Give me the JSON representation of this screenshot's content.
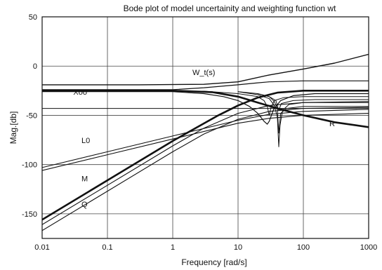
{
  "chart_data": {
    "type": "line",
    "title": "Bode  plot of model uncertainity and weighting function wt",
    "xlabel": "Frequency [rad/s]",
    "ylabel": "Mag.[db]",
    "xscale": "log",
    "xlim": [
      0.01,
      1000
    ],
    "ylim": [
      -175,
      50
    ],
    "grid": true,
    "x_ticks": [
      0.01,
      0.1,
      1,
      10,
      100,
      1000
    ],
    "x_tick_labels": [
      "0.01",
      "0.1",
      "1",
      "10",
      "100",
      "1000"
    ],
    "y_ticks": [
      50,
      0,
      -50,
      -100,
      -150
    ],
    "y_tick_labels": [
      "50",
      "0",
      "-50",
      "-100",
      "-150"
    ],
    "annotations": [
      {
        "text": "W_t(s)",
        "x": 2.0,
        "y": -9
      },
      {
        "text": "Xoo",
        "x": 0.03,
        "y": -29
      },
      {
        "text": "L0",
        "x": 0.04,
        "y": -78
      },
      {
        "text": "M",
        "x": 0.04,
        "y": -117
      },
      {
        "text": "Q",
        "x": 0.04,
        "y": -143
      },
      {
        "text": "R",
        "x": 250,
        "y": -61
      }
    ],
    "series": [
      {
        "role": "W_t",
        "stroke": 1.4,
        "points": [
          [
            0.01,
            -19
          ],
          [
            0.3,
            -19
          ],
          [
            3,
            -18.5
          ],
          [
            10,
            -16
          ],
          [
            30,
            -9
          ],
          [
            100,
            -3
          ],
          [
            300,
            3
          ],
          [
            1000,
            12
          ]
        ]
      },
      {
        "role": "Xoo",
        "stroke": 2.6,
        "points": [
          [
            0.01,
            -25
          ],
          [
            1,
            -25
          ],
          [
            4,
            -26.5
          ],
          [
            10,
            -31
          ],
          [
            20,
            -37
          ],
          [
            40,
            -43
          ],
          [
            100,
            -50
          ],
          [
            300,
            -57
          ],
          [
            1000,
            -62
          ]
        ]
      },
      {
        "role": "band-high",
        "stroke": 1.2,
        "points": [
          [
            0.01,
            -24
          ],
          [
            1,
            -24
          ],
          [
            3,
            -22
          ],
          [
            10,
            -19
          ],
          [
            20,
            -17
          ],
          [
            30,
            -16
          ],
          [
            100,
            -15
          ],
          [
            1000,
            -15
          ]
        ]
      },
      {
        "role": "band-low",
        "stroke": 1.2,
        "points": [
          [
            0.01,
            -26
          ],
          [
            1,
            -26
          ],
          [
            3,
            -28
          ],
          [
            6,
            -31
          ],
          [
            10,
            -35
          ],
          [
            15,
            -41
          ],
          [
            20,
            -48
          ],
          [
            25,
            -56
          ],
          [
            28,
            -59
          ],
          [
            30,
            -56
          ],
          [
            35,
            -44
          ],
          [
            45,
            -35
          ],
          [
            70,
            -30
          ],
          [
            150,
            -28
          ],
          [
            1000,
            -28
          ]
        ]
      },
      {
        "role": "notch-1",
        "stroke": 1.0,
        "points": [
          [
            0.01,
            -25
          ],
          [
            3,
            -25.5
          ],
          [
            10,
            -28
          ],
          [
            20,
            -31
          ],
          [
            25,
            -35
          ],
          [
            28,
            -41
          ],
          [
            30,
            -50
          ],
          [
            32,
            -42
          ],
          [
            36,
            -35
          ],
          [
            50,
            -32
          ],
          [
            100,
            -31
          ],
          [
            1000,
            -31
          ]
        ]
      },
      {
        "role": "notch-2",
        "stroke": 1.0,
        "points": [
          [
            10,
            -26
          ],
          [
            20,
            -29
          ],
          [
            30,
            -33
          ],
          [
            36,
            -40
          ],
          [
            40,
            -52
          ],
          [
            42,
            -82
          ],
          [
            44,
            -60
          ],
          [
            48,
            -45
          ],
          [
            60,
            -39
          ],
          [
            100,
            -37
          ],
          [
            1000,
            -37
          ]
        ]
      },
      {
        "role": "notch-3",
        "stroke": 1.0,
        "points": [
          [
            10,
            -26
          ],
          [
            20,
            -28
          ],
          [
            30,
            -31
          ],
          [
            36,
            -36
          ],
          [
            40,
            -43
          ],
          [
            42,
            -68
          ],
          [
            45,
            -48
          ],
          [
            55,
            -43
          ],
          [
            100,
            -41
          ],
          [
            1000,
            -41
          ]
        ]
      },
      {
        "role": "notch-4",
        "stroke": 1.0,
        "points": [
          [
            20,
            -28
          ],
          [
            30,
            -31
          ],
          [
            38,
            -35
          ],
          [
            42,
            -45
          ],
          [
            46,
            -38
          ],
          [
            70,
            -35
          ],
          [
            150,
            -34
          ],
          [
            1000,
            -34
          ]
        ]
      },
      {
        "role": "L0-upper",
        "stroke": 1.1,
        "points": [
          [
            0.01,
            -103
          ],
          [
            0.1,
            -87
          ],
          [
            1,
            -71
          ],
          [
            10,
            -55
          ],
          [
            30,
            -49
          ],
          [
            100,
            -46
          ],
          [
            1000,
            -44
          ]
        ]
      },
      {
        "role": "L0-lower",
        "stroke": 1.1,
        "points": [
          [
            0.01,
            -106
          ],
          [
            0.1,
            -90
          ],
          [
            1,
            -74
          ],
          [
            10,
            -58
          ],
          [
            30,
            -53
          ],
          [
            100,
            -50
          ],
          [
            1000,
            -48
          ]
        ]
      },
      {
        "role": "M",
        "stroke": 2.6,
        "points": [
          [
            0.01,
            -156
          ],
          [
            0.1,
            -116
          ],
          [
            1,
            -76
          ],
          [
            5,
            -50
          ],
          [
            10,
            -40
          ],
          [
            20,
            -32
          ],
          [
            40,
            -27
          ],
          [
            100,
            -25
          ],
          [
            300,
            -25
          ],
          [
            1000,
            -25
          ]
        ]
      },
      {
        "role": "M-2",
        "stroke": 1.1,
        "points": [
          [
            0.01,
            -161
          ],
          [
            0.1,
            -121
          ],
          [
            1,
            -81
          ],
          [
            3,
            -63
          ],
          [
            10,
            -48
          ],
          [
            30,
            -40
          ],
          [
            100,
            -37
          ],
          [
            1000,
            -36
          ]
        ]
      },
      {
        "role": "Q",
        "stroke": 1.1,
        "points": [
          [
            0.01,
            -167
          ],
          [
            0.1,
            -127
          ],
          [
            1,
            -87
          ],
          [
            3,
            -69
          ],
          [
            10,
            -54
          ],
          [
            30,
            -46
          ],
          [
            100,
            -43
          ],
          [
            1000,
            -42
          ]
        ]
      },
      {
        "role": "hline",
        "stroke": 1.0,
        "points": [
          [
            0.01,
            -43
          ],
          [
            1000,
            -43
          ]
        ]
      }
    ]
  }
}
